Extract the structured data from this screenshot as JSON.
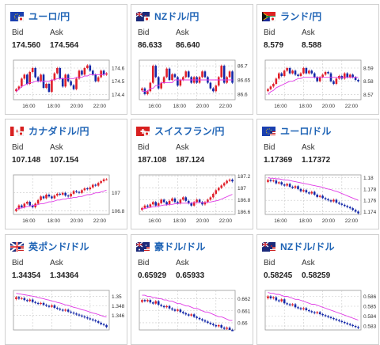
{
  "cards": [
    {
      "pair": "ユーロ/円",
      "flag": "eu-jp",
      "bid_label": "Bid",
      "ask_label": "Ask",
      "bid": "174.560",
      "ask": "174.564",
      "chart_data": {
        "type": "candlestick",
        "yticks": [
          "174.6",
          "174.5",
          "174.4"
        ],
        "ylim": [
          174.36,
          174.66
        ],
        "xticks": [
          "16:00",
          "18:00",
          "20:00",
          "22:00"
        ],
        "values": [
          174.44,
          174.46,
          174.52,
          174.55,
          174.48,
          174.57,
          174.6,
          174.53,
          174.5,
          174.55,
          174.45,
          174.48,
          174.42,
          174.51,
          174.56,
          174.6,
          174.52,
          174.46,
          174.55,
          174.5,
          174.47,
          174.44,
          174.52,
          174.58,
          174.55,
          174.6,
          174.62,
          174.58,
          174.55,
          174.5,
          174.53,
          174.58,
          174.55,
          174.56
        ],
        "ma": [
          174.42,
          174.44,
          174.46,
          174.47,
          174.48,
          174.49,
          174.49,
          174.5,
          174.5,
          174.5,
          174.5,
          174.5,
          174.5,
          174.51,
          174.51,
          174.52,
          174.52,
          174.52,
          174.52,
          174.52,
          174.52,
          174.52,
          174.53,
          174.53,
          174.53,
          174.54,
          174.54,
          174.55,
          174.55,
          174.55,
          174.55,
          174.55,
          174.55,
          174.56
        ]
      }
    },
    {
      "pair": "NZドル/円",
      "flag": "nz-jp",
      "bid_label": "Bid",
      "ask_label": "Ask",
      "bid": "86.633",
      "ask": "86.640",
      "chart_data": {
        "type": "candlestick",
        "yticks": [
          "86.7",
          "86.65",
          "86.6"
        ],
        "ylim": [
          86.58,
          86.72
        ],
        "xticks": [
          "16:00",
          "18:00",
          "20:00",
          "22:00"
        ],
        "values": [
          86.62,
          86.6,
          86.61,
          86.64,
          86.7,
          86.66,
          86.62,
          86.64,
          86.66,
          86.69,
          86.65,
          86.67,
          86.66,
          86.63,
          86.65,
          86.66,
          86.68,
          86.66,
          86.64,
          86.66,
          86.64,
          86.66,
          86.68,
          86.66,
          86.64,
          86.62,
          86.61,
          86.63,
          86.66,
          86.7,
          86.64,
          86.66,
          86.68,
          86.64
        ],
        "ma": [
          86.61,
          86.61,
          86.61,
          86.62,
          86.62,
          86.63,
          86.63,
          86.64,
          86.64,
          86.64,
          86.64,
          86.64,
          86.65,
          86.65,
          86.65,
          86.65,
          86.65,
          86.65,
          86.65,
          86.65,
          86.65,
          86.65,
          86.65,
          86.65,
          86.65,
          86.65,
          86.65,
          86.65,
          86.65,
          86.65,
          86.65,
          86.65,
          86.65,
          86.65
        ]
      }
    },
    {
      "pair": "ランド/円",
      "flag": "za-jp",
      "bid_label": "Bid",
      "ask_label": "Ask",
      "bid": "8.579",
      "ask": "8.588",
      "chart_data": {
        "type": "candlestick",
        "yticks": [
          "8.59",
          "8.58",
          "8.57"
        ],
        "ylim": [
          8.566,
          8.596
        ],
        "xticks": [
          "16:00",
          "18:00",
          "20:00",
          "22:00"
        ],
        "values": [
          8.574,
          8.576,
          8.578,
          8.582,
          8.586,
          8.584,
          8.588,
          8.59,
          8.586,
          8.588,
          8.585,
          8.584,
          8.586,
          8.59,
          8.586,
          8.588,
          8.586,
          8.583,
          8.58,
          8.583,
          8.585,
          8.587,
          8.586,
          8.58,
          8.578,
          8.582,
          8.584,
          8.582,
          8.586,
          8.583,
          8.585,
          8.583,
          8.581,
          8.58
        ],
        "ma": [
          8.57,
          8.572,
          8.573,
          8.575,
          8.576,
          8.577,
          8.578,
          8.579,
          8.58,
          8.58,
          8.581,
          8.582,
          8.582,
          8.583,
          8.583,
          8.583,
          8.583,
          8.583,
          8.583,
          8.583,
          8.583,
          8.583,
          8.583,
          8.583,
          8.583,
          8.583,
          8.583,
          8.583,
          8.583,
          8.583,
          8.583,
          8.583,
          8.583,
          8.583
        ]
      }
    },
    {
      "pair": "カナダドル/円",
      "flag": "ca-jp",
      "bid_label": "Bid",
      "ask_label": "Ask",
      "bid": "107.148",
      "ask": "107.154",
      "chart_data": {
        "type": "candlestick",
        "yticks": [
          "107",
          "106.8"
        ],
        "ylim": [
          106.76,
          107.2
        ],
        "xticks": [
          "16:00",
          "18:00",
          "20:00",
          "22:00"
        ],
        "values": [
          106.82,
          106.86,
          106.84,
          106.88,
          106.9,
          106.86,
          106.84,
          106.88,
          106.92,
          106.96,
          106.94,
          106.98,
          106.96,
          106.94,
          106.97,
          106.99,
          106.98,
          107.0,
          106.97,
          106.96,
          106.99,
          107.02,
          107.01,
          107.0,
          107.03,
          107.05,
          107.04,
          107.06,
          107.09,
          107.08,
          107.11,
          107.13,
          107.15,
          107.15
        ],
        "ma": [
          106.82,
          106.83,
          106.83,
          106.84,
          106.85,
          106.85,
          106.86,
          106.86,
          106.87,
          106.88,
          106.88,
          106.89,
          106.9,
          106.9,
          106.91,
          106.92,
          106.92,
          106.93,
          106.93,
          106.94,
          106.94,
          106.95,
          106.95,
          106.96,
          106.96,
          106.97,
          106.98,
          106.98,
          106.99,
          107.0,
          107.0,
          107.01,
          107.02,
          107.03
        ]
      }
    },
    {
      "pair": "スイスフラン/円",
      "flag": "ch-jp",
      "bid_label": "Bid",
      "ask_label": "Ask",
      "bid": "187.108",
      "ask": "187.124",
      "chart_data": {
        "type": "candlestick",
        "yticks": [
          "187.2",
          "187",
          "186.8",
          "186.6"
        ],
        "ylim": [
          186.55,
          187.22
        ],
        "xticks": [
          "16:00",
          "18:00",
          "20:00",
          "22:00"
        ],
        "values": [
          186.66,
          186.7,
          186.68,
          186.72,
          186.76,
          186.7,
          186.74,
          186.8,
          186.76,
          186.72,
          186.78,
          186.82,
          186.76,
          186.74,
          186.8,
          186.84,
          186.78,
          186.74,
          186.7,
          186.76,
          186.8,
          186.76,
          186.72,
          186.76,
          186.8,
          186.84,
          186.9,
          186.96,
          187.0,
          187.04,
          187.08,
          187.12,
          187.14,
          187.11
        ],
        "ma": [
          186.64,
          186.65,
          186.66,
          186.67,
          186.68,
          186.68,
          186.69,
          186.7,
          186.71,
          186.71,
          186.72,
          186.72,
          186.73,
          186.73,
          186.74,
          186.74,
          186.74,
          186.74,
          186.74,
          186.75,
          186.75,
          186.75,
          186.75,
          186.75,
          186.76,
          186.76,
          186.77,
          186.78,
          186.79,
          186.81,
          186.83,
          186.85,
          186.87,
          186.89
        ]
      }
    },
    {
      "pair": "ユーロ/ドル",
      "flag": "eu-us",
      "bid_label": "Bid",
      "ask_label": "Ask",
      "bid": "1.17369",
      "ask": "1.17372",
      "chart_data": {
        "type": "candlestick",
        "yticks": [
          "1.18",
          "1.178",
          "1.176",
          "1.174"
        ],
        "ylim": [
          1.1735,
          1.1805
        ],
        "xticks": [
          "16:00",
          "18:00",
          "20:00",
          "22:00"
        ],
        "values": [
          1.1796,
          1.1794,
          1.1795,
          1.179,
          1.1792,
          1.1788,
          1.1786,
          1.1789,
          1.1784,
          1.1782,
          1.1785,
          1.178,
          1.1776,
          1.1778,
          1.1774,
          1.1772,
          1.1775,
          1.177,
          1.1766,
          1.1768,
          1.1764,
          1.1762,
          1.176,
          1.1758,
          1.1761,
          1.1756,
          1.1754,
          1.1752,
          1.175,
          1.1748,
          1.1746,
          1.1743,
          1.174,
          1.1737
        ],
        "ma": [
          1.18,
          1.1799,
          1.1799,
          1.1798,
          1.1798,
          1.1797,
          1.1796,
          1.1796,
          1.1795,
          1.1794,
          1.1793,
          1.1792,
          1.1791,
          1.179,
          1.1789,
          1.1788,
          1.1787,
          1.1786,
          1.1785,
          1.1784,
          1.1783,
          1.1781,
          1.178,
          1.1779,
          1.1777,
          1.1776,
          1.1774,
          1.1772,
          1.177,
          1.1768,
          1.1766,
          1.1764,
          1.1762,
          1.176
        ]
      }
    },
    {
      "pair": "英ポンド/ドル",
      "flag": "gb-us",
      "bid_label": "Bid",
      "ask_label": "Ask",
      "bid": "1.34354",
      "ask": "1.34364",
      "chart_data": {
        "type": "candlestick",
        "yticks": [
          "1.35",
          "1.348",
          "1.346"
        ],
        "ylim": [
          1.343,
          1.3512
        ],
        "xticks": [],
        "values": [
          1.3498,
          1.3495,
          1.3496,
          1.3492,
          1.349,
          1.3493,
          1.3488,
          1.3486,
          1.3484,
          1.3486,
          1.3482,
          1.348,
          1.3478,
          1.3481,
          1.3476,
          1.3474,
          1.3472,
          1.347,
          1.3472,
          1.3468,
          1.3466,
          1.3464,
          1.3462,
          1.346,
          1.3458,
          1.3456,
          1.3454,
          1.3452,
          1.345,
          1.3448,
          1.3445,
          1.3442,
          1.344,
          1.3436
        ],
        "ma": [
          1.3506,
          1.3505,
          1.3504,
          1.3503,
          1.3502,
          1.3501,
          1.35,
          1.3499,
          1.3497,
          1.3496,
          1.3495,
          1.3493,
          1.3492,
          1.349,
          1.3489,
          1.3487,
          1.3486,
          1.3484,
          1.3482,
          1.3481,
          1.3479,
          1.3477,
          1.3476,
          1.3474,
          1.3472,
          1.3471,
          1.3469,
          1.3467,
          1.3465,
          1.3464,
          1.3462,
          1.346,
          1.3458,
          1.3457
        ]
      }
    },
    {
      "pair": "豪ドル/ドル",
      "flag": "au-us",
      "bid_label": "Bid",
      "ask_label": "Ask",
      "bid": "0.65929",
      "ask": "0.65933",
      "chart_data": {
        "type": "candlestick",
        "yticks": [
          "0.662",
          "0.661",
          "0.66"
        ],
        "ylim": [
          0.6594,
          0.6627
        ],
        "xticks": [],
        "values": [
          0.6619,
          0.6618,
          0.6619,
          0.6617,
          0.6616,
          0.6618,
          0.6615,
          0.6614,
          0.6613,
          0.6614,
          0.6612,
          0.6611,
          0.661,
          0.6611,
          0.6609,
          0.6608,
          0.6607,
          0.6606,
          0.6607,
          0.6605,
          0.6604,
          0.6603,
          0.6602,
          0.6601,
          0.66,
          0.6599,
          0.6598,
          0.6597,
          0.6598,
          0.6596,
          0.6595,
          0.6596,
          0.6594,
          0.6593
        ],
        "ma": [
          0.6623,
          0.6623,
          0.6622,
          0.6622,
          0.6621,
          0.6621,
          0.662,
          0.662,
          0.6619,
          0.6619,
          0.6618,
          0.6618,
          0.6617,
          0.6616,
          0.6616,
          0.6615,
          0.6614,
          0.6614,
          0.6613,
          0.6612,
          0.6612,
          0.6611,
          0.661,
          0.6609,
          0.6609,
          0.6608,
          0.6607,
          0.6606,
          0.6605,
          0.6605,
          0.6604,
          0.6603,
          0.6602,
          0.6602
        ]
      }
    },
    {
      "pair": "NZドル/ドル",
      "flag": "nz-us",
      "bid_label": "Bid",
      "ask_label": "Ask",
      "bid": "0.58245",
      "ask": "0.58259",
      "chart_data": {
        "type": "candlestick",
        "yticks": [
          "0.586",
          "0.585",
          "0.584",
          "0.583"
        ],
        "ylim": [
          0.5826,
          0.5866
        ],
        "xticks": [],
        "values": [
          0.586,
          0.5858,
          0.5859,
          0.5856,
          0.5855,
          0.5857,
          0.5853,
          0.5852,
          0.5851,
          0.5852,
          0.5849,
          0.5848,
          0.5847,
          0.5848,
          0.5846,
          0.5845,
          0.5844,
          0.5843,
          0.5844,
          0.5842,
          0.5841,
          0.584,
          0.5839,
          0.5838,
          0.5837,
          0.5836,
          0.5835,
          0.5834,
          0.5833,
          0.5832,
          0.5831,
          0.583,
          0.5829,
          0.5828
        ],
        "ma": [
          0.5864,
          0.5863,
          0.5863,
          0.5862,
          0.5862,
          0.5861,
          0.586,
          0.586,
          0.5859,
          0.5858,
          0.5857,
          0.5857,
          0.5856,
          0.5855,
          0.5854,
          0.5853,
          0.5852,
          0.5852,
          0.5851,
          0.585,
          0.5849,
          0.5848,
          0.5847,
          0.5846,
          0.5845,
          0.5844,
          0.5843,
          0.5842,
          0.5841,
          0.584,
          0.5839,
          0.5838,
          0.5837,
          0.5836
        ]
      }
    }
  ],
  "colors": {
    "up": "#e0202a",
    "down": "#1428a8",
    "ma": "#e03ae6",
    "pair": "#1e63b5",
    "grid": "#c8c8c8"
  }
}
